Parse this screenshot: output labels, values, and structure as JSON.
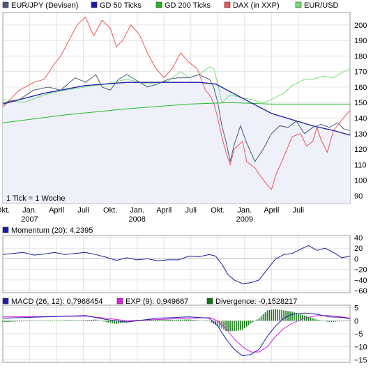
{
  "chart_data": [
    {
      "type": "line",
      "name": "main",
      "legend": [
        {
          "label": "EUR/JPY (Devisen)",
          "color": "#4a5a78"
        },
        {
          "label": "GD 50 Ticks",
          "color": "#1a1aaa"
        },
        {
          "label": "GD 200 Ticks",
          "color": "#22bb22"
        },
        {
          "label": "DAX (in XXP)",
          "color": "#ee5555"
        },
        {
          "label": "EUR/USD",
          "color": "#77dd77"
        }
      ],
      "ylim": [
        85,
        208
      ],
      "yticks": [
        90,
        100,
        110,
        120,
        130,
        140,
        150,
        160,
        170,
        180,
        190,
        200
      ],
      "note": "1 Tick = 1 Woche",
      "xlim": [
        0,
        168
      ],
      "xticks": [
        {
          "pos": 0,
          "label": "Okt.",
          "sub": ""
        },
        {
          "pos": 13,
          "label": "Jan.",
          "sub": "2007"
        },
        {
          "pos": 26,
          "label": "April",
          "sub": ""
        },
        {
          "pos": 39,
          "label": "Juli",
          "sub": ""
        },
        {
          "pos": 52,
          "label": "Okt.",
          "sub": ""
        },
        {
          "pos": 65,
          "label": "Jan.",
          "sub": "2008"
        },
        {
          "pos": 78,
          "label": "April",
          "sub": ""
        },
        {
          "pos": 91,
          "label": "Juli",
          "sub": ""
        },
        {
          "pos": 104,
          "label": "Okt.",
          "sub": ""
        },
        {
          "pos": 117,
          "label": "Jan.",
          "sub": "2009"
        },
        {
          "pos": 130,
          "label": "April",
          "sub": ""
        },
        {
          "pos": 143,
          "label": "Juli",
          "sub": ""
        }
      ],
      "series": [
        {
          "name": "EUR/JPY (Devisen)",
          "color": "#4a5a78",
          "points": [
            [
              0,
              150
            ],
            [
              8,
              152
            ],
            [
              15,
              158
            ],
            [
              22,
              160
            ],
            [
              28,
              158
            ],
            [
              35,
              166
            ],
            [
              40,
              163
            ],
            [
              45,
              168
            ],
            [
              48,
              160
            ],
            [
              52,
              158
            ],
            [
              56,
              165
            ],
            [
              60,
              168
            ],
            [
              65,
              164
            ],
            [
              70,
              160
            ],
            [
              75,
              162
            ],
            [
              80,
              165
            ],
            [
              85,
              166
            ],
            [
              90,
              166
            ],
            [
              95,
              168
            ],
            [
              100,
              165
            ],
            [
              102,
              160
            ],
            [
              104,
              150
            ],
            [
              106,
              135
            ],
            [
              108,
              125
            ],
            [
              110,
              112
            ],
            [
              112,
              123
            ],
            [
              115,
              135
            ],
            [
              118,
              124
            ],
            [
              122,
              112
            ],
            [
              126,
              120
            ],
            [
              130,
              130
            ],
            [
              134,
              135
            ],
            [
              138,
              134
            ],
            [
              142,
              138
            ],
            [
              146,
              130
            ],
            [
              150,
              134
            ],
            [
              154,
              136
            ],
            [
              158,
              134
            ],
            [
              162,
              137
            ],
            [
              165,
              133
            ],
            [
              168,
              132
            ]
          ]
        },
        {
          "name": "GD 50 Ticks",
          "color": "#1a1aaa",
          "points": [
            [
              0,
              149
            ],
            [
              20,
              156
            ],
            [
              40,
              161
            ],
            [
              60,
              163
            ],
            [
              80,
              163
            ],
            [
              95,
              163
            ],
            [
              103,
              162
            ],
            [
              110,
              157
            ],
            [
              120,
              150
            ],
            [
              130,
              143
            ],
            [
              140,
              139
            ],
            [
              150,
              135
            ],
            [
              160,
              132
            ],
            [
              168,
              129
            ]
          ]
        },
        {
          "name": "GD 200 Ticks",
          "color": "#22bb22",
          "points": [
            [
              0,
              137
            ],
            [
              30,
              142
            ],
            [
              60,
              146
            ],
            [
              90,
              149
            ],
            [
              110,
              150
            ],
            [
              130,
              149
            ],
            [
              150,
              149
            ],
            [
              168,
              149
            ]
          ]
        },
        {
          "name": "DAX (in XXP)",
          "color": "#ee5555",
          "points": [
            [
              0,
              147
            ],
            [
              8,
              158
            ],
            [
              15,
              163
            ],
            [
              20,
              165
            ],
            [
              25,
              175
            ],
            [
              28,
              180
            ],
            [
              32,
              190
            ],
            [
              36,
              200
            ],
            [
              40,
              205
            ],
            [
              44,
              193
            ],
            [
              48,
              203
            ],
            [
              52,
              198
            ],
            [
              55,
              186
            ],
            [
              58,
              190
            ],
            [
              62,
              200
            ],
            [
              66,
              194
            ],
            [
              70,
              182
            ],
            [
              74,
              172
            ],
            [
              78,
              166
            ],
            [
              82,
              172
            ],
            [
              86,
              182
            ],
            [
              90,
              176
            ],
            [
              94,
              172
            ],
            [
              98,
              158
            ],
            [
              100,
              155
            ],
            [
              102,
              150
            ],
            [
              104,
              140
            ],
            [
              106,
              128
            ],
            [
              108,
              118
            ],
            [
              110,
              110
            ],
            [
              112,
              120
            ],
            [
              116,
              125
            ],
            [
              118,
              112
            ],
            [
              122,
              108
            ],
            [
              125,
              102
            ],
            [
              128,
              97
            ],
            [
              130,
              94
            ],
            [
              132,
              103
            ],
            [
              136,
              115
            ],
            [
              140,
              128
            ],
            [
              144,
              130
            ],
            [
              147,
              122
            ],
            [
              150,
              125
            ],
            [
              152,
              134
            ],
            [
              154,
              126
            ],
            [
              157,
              118
            ],
            [
              160,
              132
            ],
            [
              163,
              137
            ],
            [
              166,
              142
            ],
            [
              168,
              145
            ]
          ]
        },
        {
          "name": "EUR/USD",
          "color": "#77dd77",
          "points": [
            [
              0,
              152
            ],
            [
              10,
              150
            ],
            [
              20,
              155
            ],
            [
              30,
              158
            ],
            [
              40,
              160
            ],
            [
              50,
              162
            ],
            [
              60,
              165
            ],
            [
              70,
              162
            ],
            [
              80,
              164
            ],
            [
              86,
              170
            ],
            [
              90,
              166
            ],
            [
              95,
              168
            ],
            [
              100,
              173
            ],
            [
              102,
              172
            ],
            [
              104,
              162
            ],
            [
              106,
              150
            ],
            [
              110,
              155
            ],
            [
              116,
              153
            ],
            [
              120,
              152
            ],
            [
              126,
              150
            ],
            [
              130,
              152
            ],
            [
              136,
              156
            ],
            [
              140,
              161
            ],
            [
              146,
              165
            ],
            [
              150,
              165
            ],
            [
              155,
              167
            ],
            [
              160,
              166
            ],
            [
              165,
              170
            ],
            [
              168,
              172
            ]
          ]
        }
      ]
    },
    {
      "type": "line",
      "name": "momentum",
      "label": "Momentum (20): 4,2395",
      "color": "#1a1aaa",
      "ylim": [
        -64,
        44
      ],
      "yticks": [
        40,
        20,
        0,
        -20,
        -40,
        -60
      ],
      "points": [
        [
          0,
          8
        ],
        [
          5,
          10
        ],
        [
          10,
          12
        ],
        [
          15,
          7
        ],
        [
          20,
          9
        ],
        [
          25,
          12
        ],
        [
          30,
          8
        ],
        [
          35,
          10
        ],
        [
          40,
          12
        ],
        [
          45,
          8
        ],
        [
          50,
          3
        ],
        [
          55,
          -3
        ],
        [
          60,
          2
        ],
        [
          65,
          -2
        ],
        [
          70,
          0
        ],
        [
          75,
          -4
        ],
        [
          80,
          -2
        ],
        [
          85,
          -2
        ],
        [
          90,
          5
        ],
        [
          95,
          4
        ],
        [
          100,
          8
        ],
        [
          103,
          5
        ],
        [
          106,
          -10
        ],
        [
          109,
          -30
        ],
        [
          112,
          -40
        ],
        [
          116,
          -47
        ],
        [
          120,
          -45
        ],
        [
          124,
          -40
        ],
        [
          128,
          -20
        ],
        [
          132,
          0
        ],
        [
          136,
          8
        ],
        [
          140,
          10
        ],
        [
          144,
          18
        ],
        [
          148,
          25
        ],
        [
          152,
          16
        ],
        [
          156,
          20
        ],
        [
          160,
          12
        ],
        [
          164,
          2
        ],
        [
          168,
          5
        ]
      ]
    },
    {
      "type": "bar+line",
      "name": "macd",
      "labels": [
        {
          "label": "MACD (26, 12): 0,7968454",
          "color": "#1a1aaa"
        },
        {
          "label": "EXP (9): 0,949667",
          "color": "#dd22dd"
        },
        {
          "label": "Divergence: -0,1528217",
          "color": "#117711"
        }
      ],
      "ylim": [
        -16,
        6
      ],
      "yticks": [
        5,
        0,
        -5,
        -10,
        -15
      ],
      "macd": [
        [
          0,
          1
        ],
        [
          20,
          1.5
        ],
        [
          40,
          2
        ],
        [
          50,
          0.5
        ],
        [
          60,
          -0.5
        ],
        [
          75,
          1
        ],
        [
          90,
          1.5
        ],
        [
          100,
          1
        ],
        [
          104,
          -2
        ],
        [
          108,
          -7
        ],
        [
          112,
          -11
        ],
        [
          116,
          -13.5
        ],
        [
          120,
          -13
        ],
        [
          124,
          -11
        ],
        [
          128,
          -6
        ],
        [
          132,
          -2
        ],
        [
          136,
          1
        ],
        [
          140,
          2.5
        ],
        [
          146,
          3
        ],
        [
          152,
          2.5
        ],
        [
          158,
          1.5
        ],
        [
          164,
          1.3
        ],
        [
          168,
          0.8
        ]
      ],
      "exp": [
        [
          0,
          1.5
        ],
        [
          20,
          1.6
        ],
        [
          40,
          1.8
        ],
        [
          50,
          1
        ],
        [
          60,
          0
        ],
        [
          75,
          0.5
        ],
        [
          90,
          1
        ],
        [
          100,
          1.2
        ],
        [
          104,
          0
        ],
        [
          108,
          -3
        ],
        [
          112,
          -7
        ],
        [
          116,
          -10
        ],
        [
          120,
          -12
        ],
        [
          124,
          -12
        ],
        [
          128,
          -10
        ],
        [
          132,
          -6
        ],
        [
          136,
          -3
        ],
        [
          140,
          -1
        ],
        [
          146,
          1
        ],
        [
          152,
          2
        ],
        [
          158,
          2
        ],
        [
          164,
          1.5
        ],
        [
          168,
          1
        ]
      ],
      "divergence": [
        [
          0,
          -0.5
        ],
        [
          10,
          -0.2
        ],
        [
          20,
          -0.1
        ],
        [
          30,
          0.2
        ],
        [
          40,
          0.2
        ],
        [
          45,
          0.5
        ],
        [
          50,
          -0.5
        ],
        [
          55,
          -1.2
        ],
        [
          60,
          -0.5
        ],
        [
          65,
          0.3
        ],
        [
          70,
          0.5
        ],
        [
          75,
          0.5
        ],
        [
          80,
          0.4
        ],
        [
          90,
          0.5
        ],
        [
          100,
          -0.2
        ],
        [
          104,
          -2
        ],
        [
          108,
          -4
        ],
        [
          112,
          -4
        ],
        [
          116,
          -3.5
        ],
        [
          120,
          -1
        ],
        [
          124,
          1
        ],
        [
          128,
          4
        ],
        [
          132,
          4.5
        ],
        [
          136,
          4
        ],
        [
          140,
          3.5
        ],
        [
          146,
          2
        ],
        [
          152,
          0.5
        ],
        [
          158,
          -0.5
        ],
        [
          164,
          -0.2
        ],
        [
          168,
          -0.15
        ]
      ]
    }
  ]
}
